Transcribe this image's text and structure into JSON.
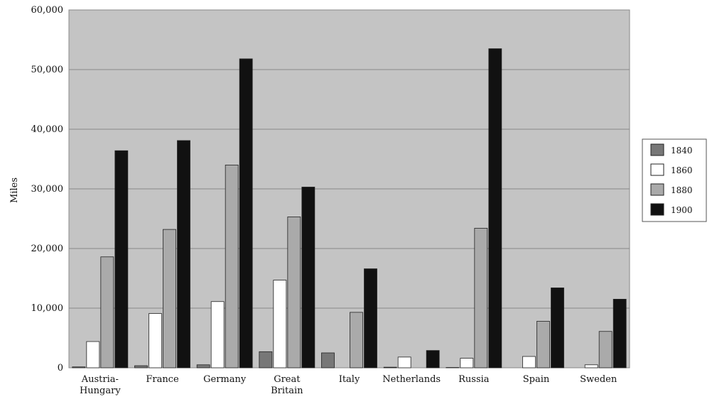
{
  "chart_data": {
    "type": "bar",
    "title": "",
    "xlabel": "",
    "ylabel": "Miles",
    "ylim": [
      0,
      60000
    ],
    "yticks": [
      "0",
      "10,000",
      "20,000",
      "30,000",
      "40,000",
      "50,000",
      "60,000"
    ],
    "grid": true,
    "legend_position": "right",
    "categories": [
      [
        "Austria-",
        "Hungary"
      ],
      [
        "France"
      ],
      [
        "Germany"
      ],
      [
        "Great",
        "Britain"
      ],
      [
        "Italy"
      ],
      [
        "Netherlands"
      ],
      [
        "Russia"
      ],
      [
        "Spain"
      ],
      [
        "Sweden"
      ]
    ],
    "series": [
      {
        "name": "1840",
        "color": "#777777",
        "values": [
          150,
          350,
          500,
          2700,
          2500,
          100,
          50,
          0,
          0
        ]
      },
      {
        "name": "1860",
        "color": "#ffffff",
        "values": [
          4400,
          9100,
          11100,
          14700,
          0,
          1800,
          1600,
          1900,
          500
        ]
      },
      {
        "name": "1880",
        "color": "#aaaaaa",
        "values": [
          18600,
          23200,
          34000,
          25300,
          9300,
          0,
          23400,
          7800,
          6100
        ]
      },
      {
        "name": "1900",
        "color": "#111111",
        "values": [
          36400,
          38100,
          51800,
          30300,
          16600,
          2900,
          53500,
          13400,
          11500
        ]
      }
    ],
    "plot_background": "#c4c4c4"
  }
}
